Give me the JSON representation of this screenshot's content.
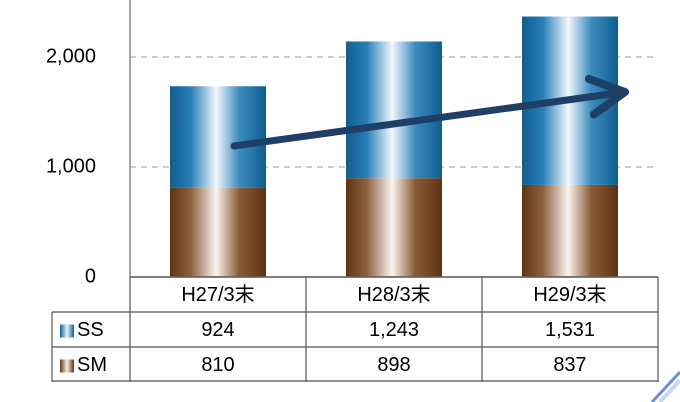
{
  "chart_data": {
    "type": "bar",
    "stacked": true,
    "categories": [
      "H27/3末",
      "H28/3末",
      "H29/3末"
    ],
    "series": [
      {
        "name": "SS",
        "values": [
          924,
          1243,
          1531
        ],
        "color": "#1e6f9f"
      },
      {
        "name": "SM",
        "values": [
          810,
          898,
          837
        ],
        "color": "#6b3f1c"
      }
    ],
    "ylim": [
      0,
      2400
    ],
    "yticks": [
      "0",
      "1,000",
      "2,000"
    ],
    "ytick_values": [
      0,
      1000,
      2000
    ],
    "grid": true,
    "data_table": {
      "rows": [
        {
          "key": "SS",
          "cells": [
            "924",
            "1,243",
            "1,531"
          ]
        },
        {
          "key": "SM",
          "cells": [
            "810",
            "898",
            "837"
          ]
        }
      ]
    },
    "annotation": "upward trend arrow",
    "arrow_color": "#1f3f66"
  }
}
